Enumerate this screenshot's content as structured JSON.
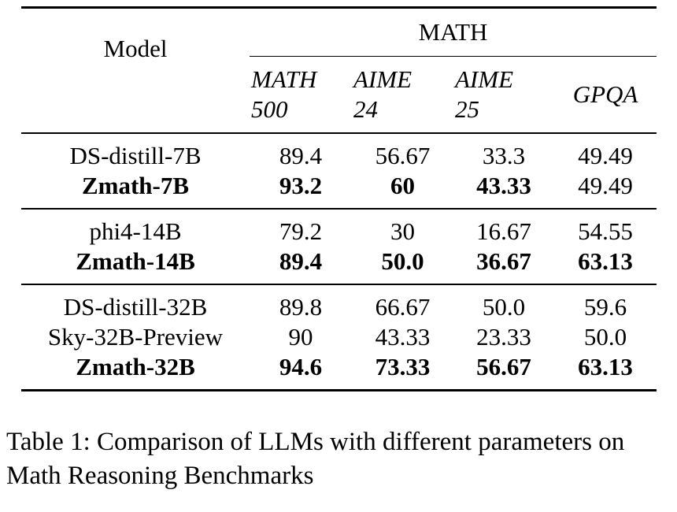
{
  "table": {
    "model_header": "Model",
    "group_header": "MATH",
    "sub_headers": [
      [
        "MATH",
        "500"
      ],
      [
        "AIME",
        "24"
      ],
      [
        "AIME",
        "25"
      ],
      [
        "GPQA"
      ]
    ],
    "groups": [
      {
        "rows": [
          {
            "model": "DS-distill-7B",
            "values": [
              "89.4",
              "56.67",
              "33.3",
              "49.49"
            ],
            "bold_model": false,
            "bold": [
              false,
              false,
              false,
              false
            ]
          },
          {
            "model": "Zmath-7B",
            "values": [
              "93.2",
              "60",
              "43.33",
              "49.49"
            ],
            "bold_model": true,
            "bold": [
              true,
              true,
              true,
              false
            ]
          }
        ]
      },
      {
        "rows": [
          {
            "model": "phi4-14B",
            "values": [
              "79.2",
              "30",
              "16.67",
              "54.55"
            ],
            "bold_model": false,
            "bold": [
              false,
              false,
              false,
              false
            ]
          },
          {
            "model": "Zmath-14B",
            "values": [
              "89.4",
              "50.0",
              "36.67",
              "63.13"
            ],
            "bold_model": true,
            "bold": [
              true,
              true,
              true,
              true
            ]
          }
        ]
      },
      {
        "rows": [
          {
            "model": "DS-distill-32B",
            "values": [
              "89.8",
              "66.67",
              "50.0",
              "59.6"
            ],
            "bold_model": false,
            "bold": [
              false,
              false,
              false,
              false
            ]
          },
          {
            "model": "Sky-32B-Preview",
            "values": [
              "90",
              "43.33",
              "23.33",
              "50.0"
            ],
            "bold_model": false,
            "bold": [
              false,
              false,
              false,
              false
            ]
          },
          {
            "model": "Zmath-32B",
            "values": [
              "94.6",
              "73.33",
              "56.67",
              "63.13"
            ],
            "bold_model": true,
            "bold": [
              true,
              true,
              true,
              true
            ]
          }
        ]
      }
    ]
  },
  "caption": "Table 1: Comparison of LLMs with different parameters on Math Reasoning Benchmarks"
}
